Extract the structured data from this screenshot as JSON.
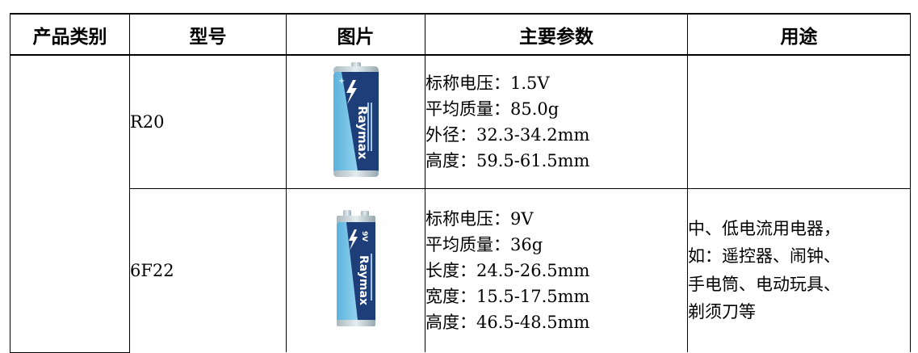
{
  "table": {
    "headers": [
      "产品类别",
      "型号",
      "图片",
      "主要参数",
      "用途"
    ],
    "rows": [
      {
        "category": "",
        "model": "R20",
        "image_icon": "battery-d-cell-icon",
        "brand_label": "Raymax",
        "params": [
          "标称电压：1.5V",
          "平均质量：85.0g",
          "外径：32.3-34.2mm",
          "高度：59.5-61.5mm"
        ],
        "usage": []
      },
      {
        "category": "",
        "model": "6F22",
        "image_icon": "battery-9v-icon",
        "brand_label": "Raymax",
        "params": [
          "标称电压：9V",
          "平均质量：36g",
          "长度：24.5-26.5mm",
          "宽度：15.5-17.5mm",
          "高度：46.5-48.5mm"
        ],
        "usage": [
          "中、低电流用电器，",
          "如：遥控器、闹钟、",
          "手电筒、电动玩具、",
          "剃须刀等"
        ]
      }
    ]
  },
  "colors": {
    "battery_dark": "#1d3e78",
    "battery_light": "#5bb2dc",
    "battery_cap": "#c8d6dc"
  }
}
